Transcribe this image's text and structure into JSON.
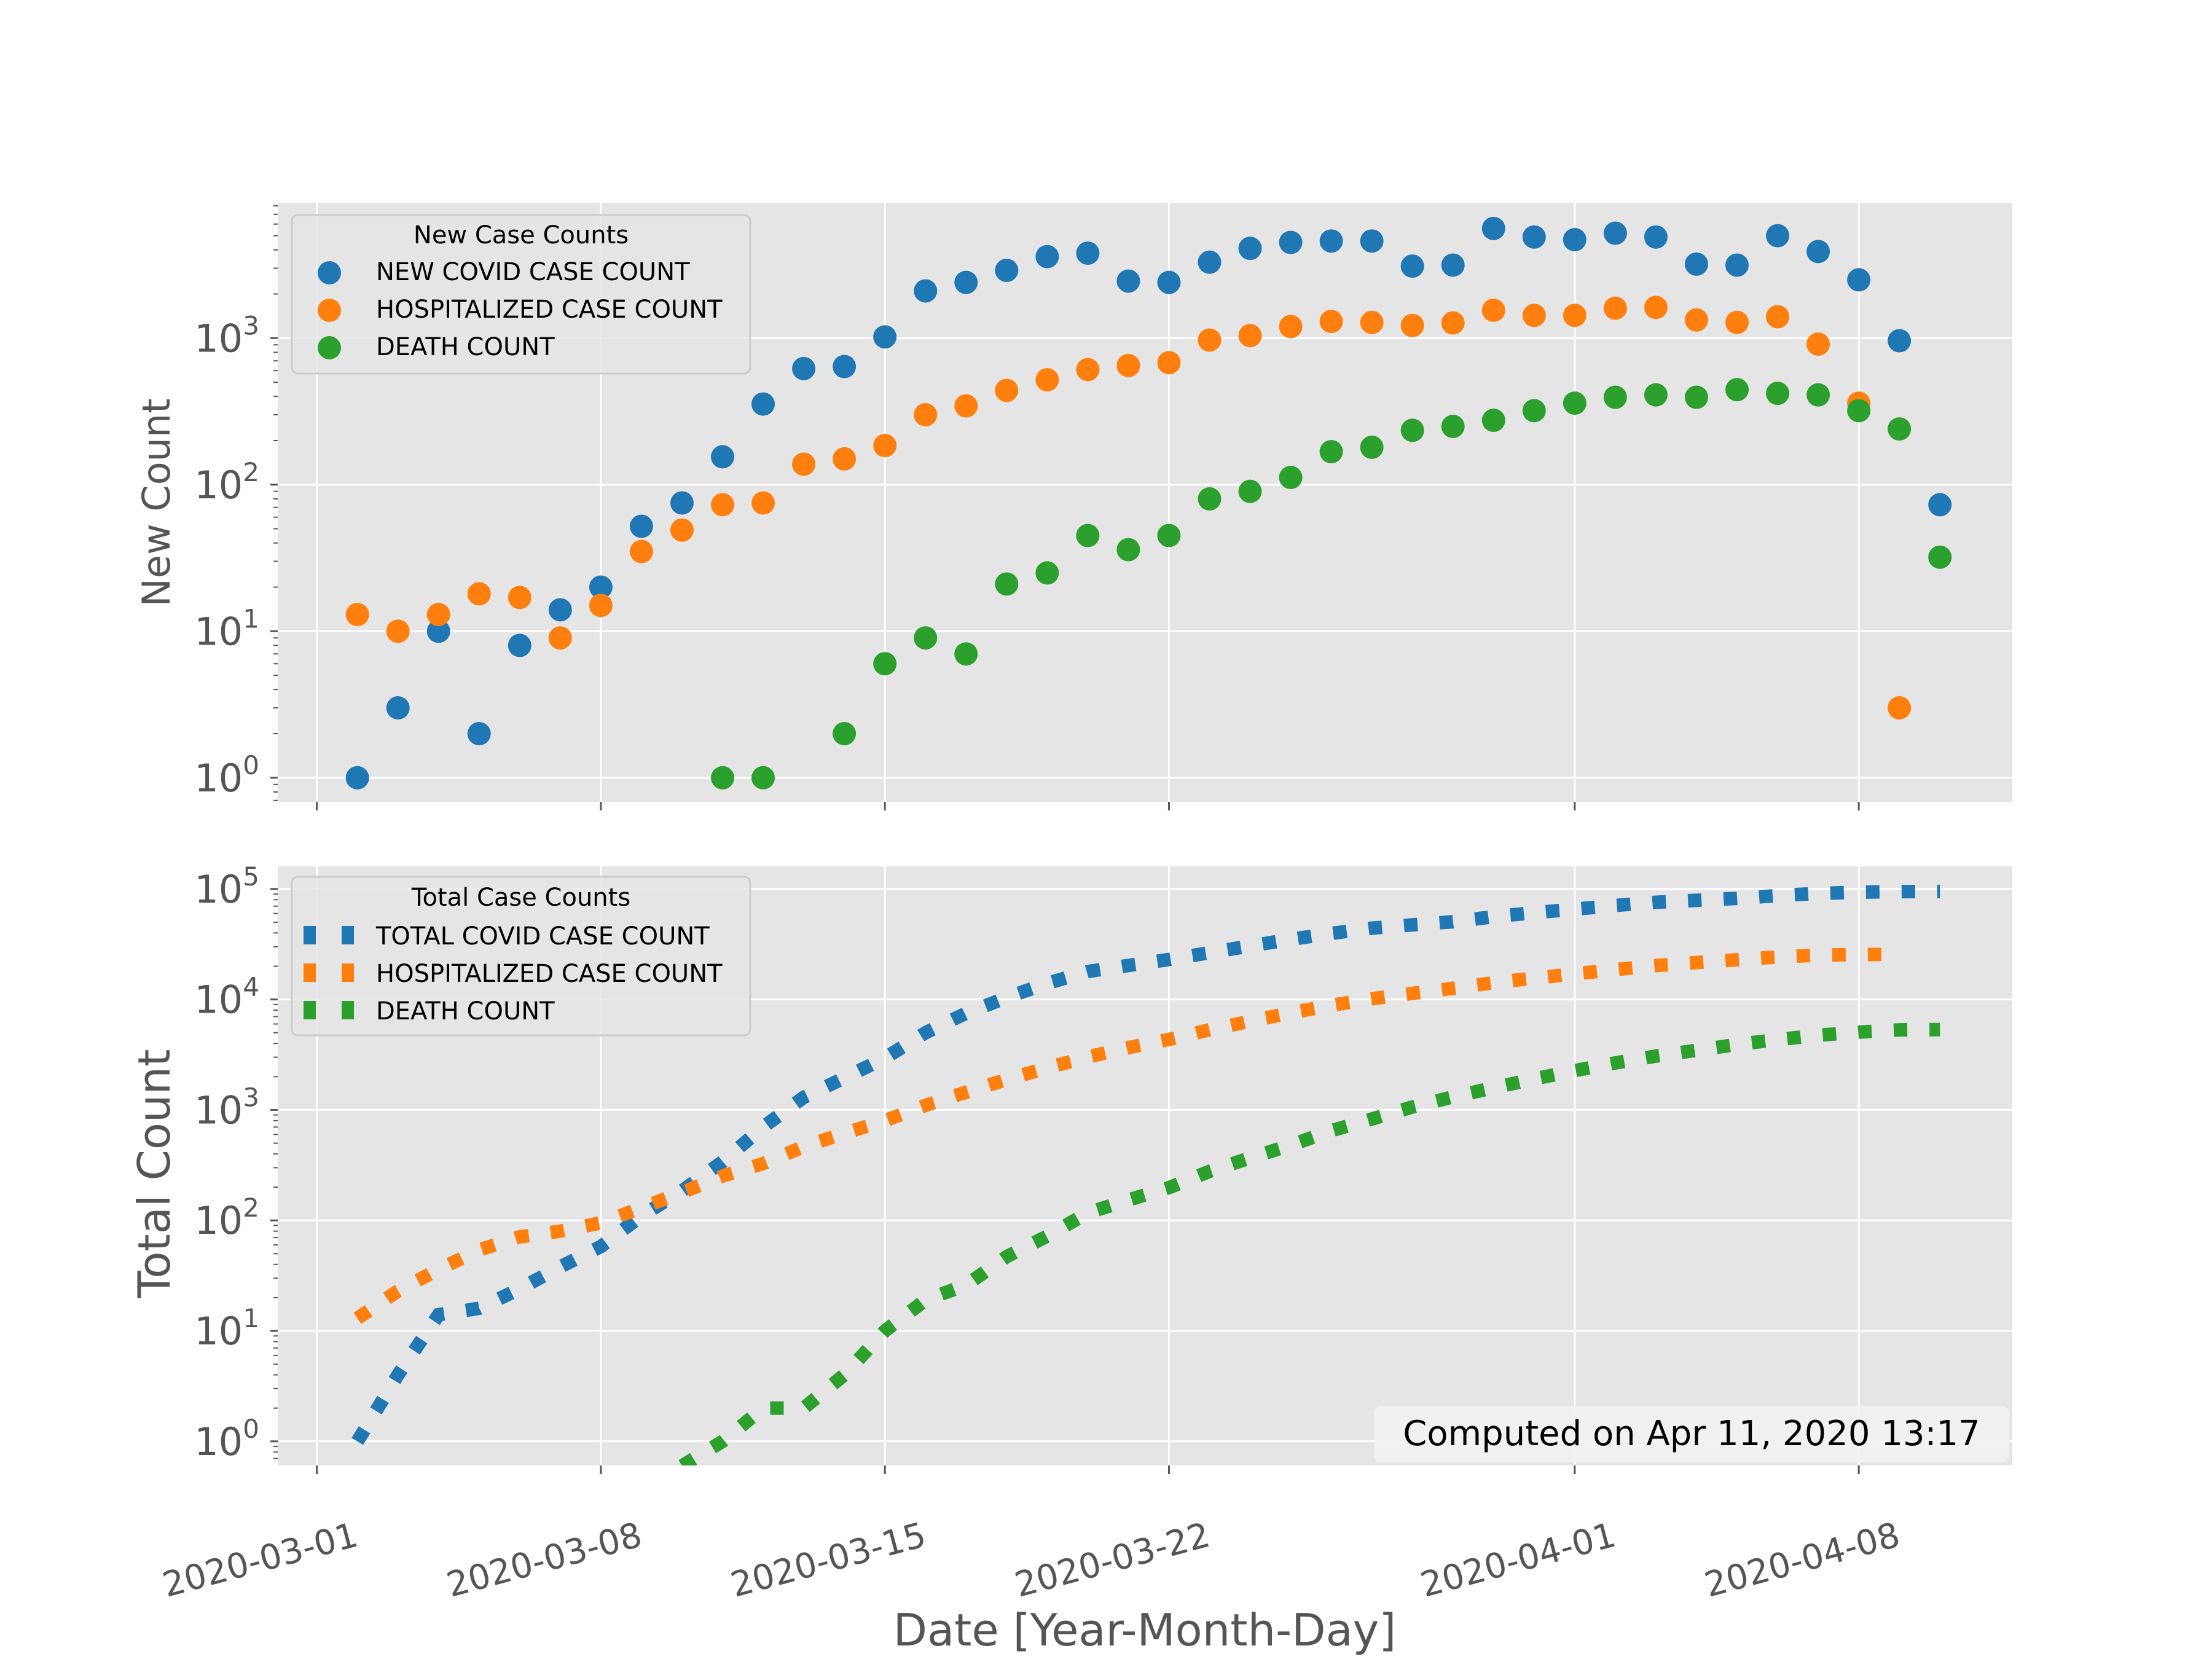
{
  "chart_data": [
    {
      "type": "scatter",
      "yscale": "log",
      "ylabel": "New Count",
      "ylim": [
        0.55,
        8500
      ],
      "yticks": [
        "10^0",
        "10^1",
        "10^2",
        "10^3"
      ],
      "grid": true,
      "legend": {
        "title": "New Case Counts",
        "position": "top-left",
        "entries": [
          "NEW COVID CASE COUNT",
          "HOSPITALIZED CASE COUNT",
          "DEATH COUNT"
        ]
      },
      "series": [
        {
          "name": "NEW COVID CASE COUNT",
          "color": "#1f77b4",
          "points": [
            [
              "2020-03-02",
              1
            ],
            [
              "2020-03-03",
              3
            ],
            [
              "2020-03-04",
              10
            ],
            [
              "2020-03-05",
              2
            ],
            [
              "2020-03-06",
              8
            ],
            [
              "2020-03-07",
              14
            ],
            [
              "2020-03-08",
              20
            ],
            [
              "2020-03-09",
              52
            ],
            [
              "2020-03-10",
              75
            ],
            [
              "2020-03-11",
              155
            ],
            [
              "2020-03-12",
              355
            ],
            [
              "2020-03-13",
              620
            ],
            [
              "2020-03-14",
              640
            ],
            [
              "2020-03-15",
              1020
            ],
            [
              "2020-03-16",
              2100
            ],
            [
              "2020-03-17",
              2400
            ],
            [
              "2020-03-18",
              2900
            ],
            [
              "2020-03-19",
              3600
            ],
            [
              "2020-03-20",
              3800
            ],
            [
              "2020-03-21",
              2450
            ],
            [
              "2020-03-22",
              2400
            ],
            [
              "2020-03-23",
              3300
            ],
            [
              "2020-03-24",
              4100
            ],
            [
              "2020-03-25",
              4500
            ],
            [
              "2020-03-26",
              4600
            ],
            [
              "2020-03-27",
              4600
            ],
            [
              "2020-03-28",
              3100
            ],
            [
              "2020-03-29",
              3150
            ],
            [
              "2020-03-30",
              5600
            ],
            [
              "2020-03-31",
              4900
            ],
            [
              "2020-04-01",
              4700
            ],
            [
              "2020-04-02",
              5200
            ],
            [
              "2020-04-03",
              4900
            ],
            [
              "2020-04-04",
              3200
            ],
            [
              "2020-04-05",
              3150
            ],
            [
              "2020-04-06",
              5000
            ],
            [
              "2020-04-07",
              3900
            ],
            [
              "2020-04-08",
              2500
            ],
            [
              "2020-04-09",
              960
            ],
            [
              "2020-04-10",
              73
            ]
          ]
        },
        {
          "name": "HOSPITALIZED CASE COUNT",
          "color": "#ff7f0e",
          "points": [
            [
              "2020-03-02",
              13
            ],
            [
              "2020-03-03",
              10
            ],
            [
              "2020-03-04",
              13
            ],
            [
              "2020-03-05",
              18
            ],
            [
              "2020-03-06",
              17
            ],
            [
              "2020-03-07",
              9
            ],
            [
              "2020-03-08",
              15
            ],
            [
              "2020-03-09",
              35
            ],
            [
              "2020-03-10",
              49
            ],
            [
              "2020-03-11",
              73
            ],
            [
              "2020-03-12",
              75
            ],
            [
              "2020-03-13",
              138
            ],
            [
              "2020-03-14",
              150
            ],
            [
              "2020-03-15",
              185
            ],
            [
              "2020-03-16",
              300
            ],
            [
              "2020-03-17",
              345
            ],
            [
              "2020-03-18",
              440
            ],
            [
              "2020-03-19",
              520
            ],
            [
              "2020-03-20",
              610
            ],
            [
              "2020-03-21",
              650
            ],
            [
              "2020-03-22",
              680
            ],
            [
              "2020-03-23",
              970
            ],
            [
              "2020-03-24",
              1040
            ],
            [
              "2020-03-25",
              1200
            ],
            [
              "2020-03-26",
              1300
            ],
            [
              "2020-03-27",
              1280
            ],
            [
              "2020-03-28",
              1220
            ],
            [
              "2020-03-29",
              1270
            ],
            [
              "2020-03-30",
              1550
            ],
            [
              "2020-03-31",
              1430
            ],
            [
              "2020-04-01",
              1430
            ],
            [
              "2020-04-02",
              1600
            ],
            [
              "2020-04-03",
              1620
            ],
            [
              "2020-04-04",
              1330
            ],
            [
              "2020-04-05",
              1280
            ],
            [
              "2020-04-06",
              1400
            ],
            [
              "2020-04-07",
              910
            ],
            [
              "2020-04-08",
              360
            ],
            [
              "2020-04-09",
              3
            ]
          ]
        },
        {
          "name": "DEATH COUNT",
          "color": "#2ca02c",
          "points": [
            [
              "2020-03-11",
              1
            ],
            [
              "2020-03-12",
              1
            ],
            [
              "2020-03-14",
              2
            ],
            [
              "2020-03-15",
              6
            ],
            [
              "2020-03-16",
              9
            ],
            [
              "2020-03-17",
              7
            ],
            [
              "2020-03-18",
              21
            ],
            [
              "2020-03-19",
              25
            ],
            [
              "2020-03-20",
              45
            ],
            [
              "2020-03-21",
              36
            ],
            [
              "2020-03-22",
              45
            ],
            [
              "2020-03-23",
              80
            ],
            [
              "2020-03-24",
              90
            ],
            [
              "2020-03-25",
              112
            ],
            [
              "2020-03-26",
              168
            ],
            [
              "2020-03-27",
              180
            ],
            [
              "2020-03-28",
              235
            ],
            [
              "2020-03-29",
              250
            ],
            [
              "2020-03-30",
              275
            ],
            [
              "2020-03-31",
              320
            ],
            [
              "2020-04-01",
              360
            ],
            [
              "2020-04-02",
              395
            ],
            [
              "2020-04-03",
              410
            ],
            [
              "2020-04-04",
              395
            ],
            [
              "2020-04-05",
              445
            ],
            [
              "2020-04-06",
              420
            ],
            [
              "2020-04-07",
              410
            ],
            [
              "2020-04-08",
              320
            ],
            [
              "2020-04-09",
              240
            ],
            [
              "2020-04-10",
              32
            ]
          ]
        }
      ]
    },
    {
      "type": "line",
      "line_style": "dotted",
      "yscale": "log",
      "ylabel": "Total Count",
      "ylim": [
        0.5,
        150000
      ],
      "yticks": [
        "10^0",
        "10^1",
        "10^2",
        "10^3",
        "10^4",
        "10^5"
      ],
      "grid": true,
      "legend": {
        "title": "Total Case Counts",
        "position": "top-left",
        "entries": [
          "TOTAL COVID CASE COUNT",
          "HOSPITALIZED CASE COUNT",
          "DEATH COUNT"
        ]
      },
      "annotation": {
        "text": "Computed on Apr 11, 2020 13:17",
        "position": "bottom-right"
      },
      "series": [
        {
          "name": "TOTAL COVID CASE COUNT",
          "color": "#1f77b4",
          "start": "2020-03-02",
          "values": [
            1,
            4,
            14,
            16,
            24,
            38,
            58,
            110,
            185,
            340,
            700,
            1300,
            1950,
            2950,
            5000,
            7500,
            10400,
            14000,
            17900,
            20300,
            23000,
            26500,
            30500,
            35000,
            39600,
            44200,
            47300,
            50500,
            56100,
            61000,
            65700,
            70900,
            75800,
            79000,
            82200,
            87200,
            91100,
            93600,
            94600,
            95000
          ]
        },
        {
          "name": "HOSPITALIZED CASE COUNT",
          "color": "#ff7f0e",
          "start": "2020-03-02",
          "values": [
            13,
            23,
            36,
            54,
            71,
            80,
            95,
            130,
            179,
            252,
            327,
            465,
            615,
            800,
            1100,
            1445,
            1885,
            2405,
            3015,
            3665,
            4345,
            5315,
            6355,
            7555,
            8855,
            10135,
            11355,
            12625,
            14175,
            15605,
            17035,
            18635,
            20255,
            21585,
            22865,
            24265,
            25175,
            25535,
            25538
          ]
        },
        {
          "name": "DEATH COUNT",
          "color": "#2ca02c",
          "start": "2020-03-10",
          "values": [
            0.6,
            1,
            2,
            2,
            4,
            10,
            19,
            26,
            47,
            72,
            117,
            153,
            198,
            278,
            368,
            480,
            648,
            828,
            1063,
            1313,
            1588,
            1908,
            2268,
            2663,
            3073,
            3468,
            3913,
            4333,
            4743,
            5063,
            5303,
            5335
          ]
        }
      ]
    }
  ],
  "xaxis": {
    "label": "Date [Year-Month-Day]",
    "ticks": [
      "2020-03-01",
      "2020-03-08",
      "2020-03-15",
      "2020-03-22",
      "2020-04-01",
      "2020-04-08"
    ],
    "range": [
      "2020-02-29",
      "2020-04-12"
    ]
  }
}
